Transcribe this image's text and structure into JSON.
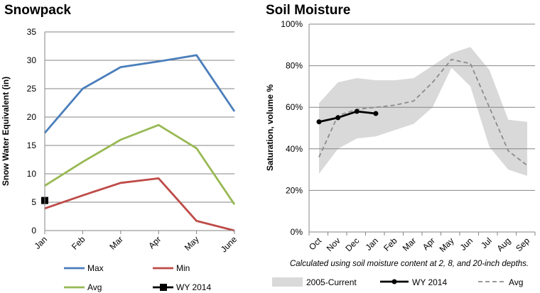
{
  "colors": {
    "max": "#4a7ebb",
    "min": "#be4b48",
    "avg": "#98b954",
    "wy": "#000000",
    "band": "#d9d9d9",
    "avgDash": "#8c8c8c",
    "grid": "#868686"
  },
  "chart_data": [
    {
      "type": "line",
      "title": "Snowpack",
      "ylabel": "Snow Water Equivalent (in)",
      "xlabel": "",
      "categories": [
        "Jan",
        "Feb",
        "Mar",
        "Apr",
        "May",
        "June"
      ],
      "ylim": [
        0,
        35
      ],
      "yticks": [
        "0",
        "5",
        "10",
        "15",
        "20",
        "25",
        "30",
        "35"
      ],
      "grid": true,
      "legend_position": "bottom",
      "series": [
        {
          "name": "Max",
          "color": "#4a7ebb",
          "values": [
            17.2,
            25.0,
            28.8,
            29.8,
            30.9,
            21.0
          ]
        },
        {
          "name": "Min",
          "color": "#be4b48",
          "values": [
            3.9,
            6.2,
            8.4,
            9.2,
            1.7,
            0.0
          ]
        },
        {
          "name": "Avg",
          "color": "#98b954",
          "values": [
            7.9,
            12.1,
            16.0,
            18.6,
            14.5,
            4.6
          ]
        },
        {
          "name": "WY 2014",
          "color": "#000000",
          "values": [
            5.3,
            null,
            null,
            null,
            null,
            null
          ]
        }
      ]
    },
    {
      "type": "line",
      "title": "Soil Moisture",
      "ylabel": "Saturation, volume %",
      "xlabel": "",
      "annotation": "Calculated using soil moisture content at 2, 8, and 20-inch depths.",
      "categories": [
        "Oct",
        "Nov",
        "Dec",
        "Jan",
        "Feb",
        "Mar",
        "Apr",
        "May",
        "Jun",
        "Jul",
        "Aug",
        "Sep"
      ],
      "ylim": [
        0,
        100
      ],
      "yticks": [
        "0%",
        "20%",
        "40%",
        "60%",
        "80%",
        "100%"
      ],
      "grid": true,
      "legend_position": "bottom",
      "band": {
        "name": "2005-Current",
        "upper": [
          62,
          72,
          74,
          73,
          73,
          74,
          80,
          86,
          89,
          78,
          54,
          53
        ],
        "lower": [
          28,
          40,
          45,
          46,
          49,
          52,
          60,
          79,
          70,
          41,
          30,
          27
        ]
      },
      "series": [
        {
          "name": "WY 2014",
          "color": "#000000",
          "values": [
            53,
            55,
            58,
            57,
            null,
            null,
            null,
            null,
            null,
            null,
            null,
            null
          ]
        },
        {
          "name": "Avg",
          "color": "#8c8c8c",
          "values": [
            36,
            56,
            59,
            60,
            61,
            63,
            72,
            83,
            81,
            60,
            39,
            32
          ]
        }
      ]
    }
  ]
}
